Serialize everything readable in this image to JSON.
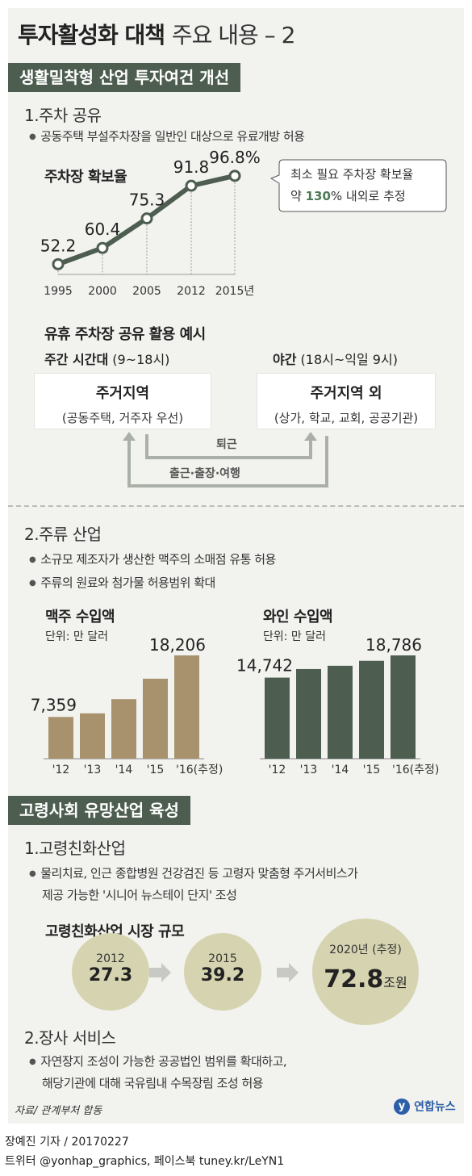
{
  "header": {
    "title_bold": "투자활성화 대책",
    "title_light": "주요 내용 – 2"
  },
  "section1": {
    "banner": "생활밀착형 산업 투자여건 개선",
    "sub1": "1.주차 공유",
    "bullet1": "공동주택 부설주차장을 일반인 대상으로 유료개방 허용",
    "chart_title": "주차장 확보율",
    "callout_line1": "최소 필요 주차장 확보율",
    "callout_pre": "약 ",
    "callout_highlight": "130",
    "callout_post": "% 내외로 추정",
    "share_title": "유휴 주차장 공유 활용 예시",
    "day_label_bold": "주간 시간대",
    "day_label_rest": " (9~18시)",
    "night_label_bold": "야간",
    "night_label_rest": " (18시~익일 9시)",
    "box_left_title": "주거지역",
    "box_left_sub": "(공동주택, 거주자 우선)",
    "box_right_title": "주거지역 외",
    "box_right_sub": "(상가, 학교, 교회, 공공기관)",
    "arrow_upper": "퇴근",
    "arrow_lower": "출근·출장·여행",
    "sub2": "2.주류 산업",
    "bullet2": "소규모 제조자가 생산한 맥주의 소매점 유통 허용",
    "bullet3": "주류의 원료와 첨가물 허용범위 확대",
    "beer_title": "맥주 수입액",
    "beer_unit": "단위: 만 달러",
    "wine_title": "와인 수입액",
    "wine_unit": "단위: 만 달러"
  },
  "section2": {
    "banner": "고령사회 유망산업 육성",
    "sub1": "1.고령친화산업",
    "bullet1_line1": "물리치료, 인근 종합병원 건강검진 등 고령자 맞춤형 주거서비스가",
    "bullet1_line2": "제공 가능한 '시니어 뉴스테이 단지' 조성",
    "market_title": "고령친화산업 시장 규모",
    "market_unit": "조원",
    "sub2": "2.장사 서비스",
    "bullet2_line1": "자연장지 조성이 가능한 공공법인 범위를 확대하고,",
    "bullet2_line2": "해당기관에 대해 국유림내 수목장림 조성 허용"
  },
  "source": "자료/ 관계부처 합동",
  "logo_text": "연합뉴스",
  "credit": "장예진 기자 / 20170227",
  "social": "트위터 @yonhap_graphics, 페이스북 tuney.kr/LeYN1",
  "colors": {
    "banner": "#4d5e50",
    "beer": "#a8926e",
    "wine": "#4d5e50",
    "circle": "#d6d4b0",
    "highlight": "#4d7a55"
  },
  "chart_data": [
    {
      "type": "line",
      "title": "주차장 확보율",
      "x": [
        "1995",
        "2000",
        "2005",
        "2012",
        "2015년"
      ],
      "values": [
        52.2,
        60.4,
        75.3,
        91.8,
        96.8
      ],
      "labels": [
        "52.2",
        "60.4",
        "75.3",
        "91.8",
        "96.8%"
      ]
    },
    {
      "type": "bar",
      "title": "맥주 수입액",
      "unit": "단위: 만 달러",
      "categories": [
        "'12",
        "'13",
        "'14",
        "'15",
        "'16(추정)"
      ],
      "values": [
        7359,
        8000,
        10500,
        14100,
        18206
      ],
      "labels": [
        "7,359",
        "",
        "",
        "",
        "18,206"
      ]
    },
    {
      "type": "bar",
      "title": "와인 수입액",
      "unit": "단위: 만 달러",
      "categories": [
        "'12",
        "'13",
        "'14",
        "'15",
        "'16(추정)"
      ],
      "values": [
        14742,
        16300,
        16900,
        17800,
        18786
      ],
      "labels": [
        "14,742",
        "",
        "",
        "",
        "18,786"
      ]
    },
    {
      "type": "bubble",
      "title": "고령친화산업 시장 규모",
      "categories": [
        "2012",
        "2015",
        "2020년 (추정)"
      ],
      "values": [
        27.3,
        39.2,
        72.8
      ],
      "unit": "조원"
    }
  ]
}
